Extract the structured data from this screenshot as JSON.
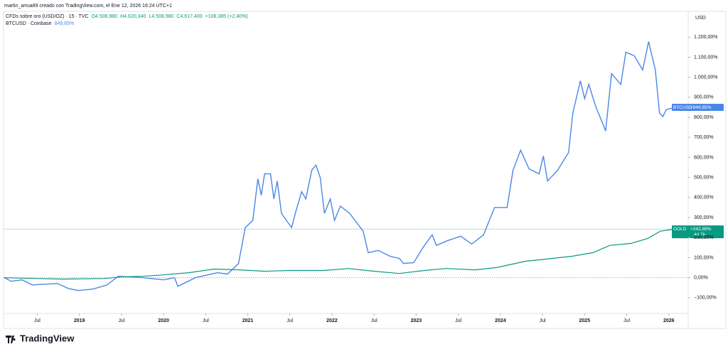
{
  "header": {
    "credit": "martin_arrua89 creado con TradingView.com, el Ene 12, 2026 16:24 UTC+1",
    "logo": "TradingView"
  },
  "chart_data": {
    "type": "line",
    "currency": "USD",
    "legend": [
      {
        "name": "CFDs sobre oro (USD/OZ) · 15 · TVC",
        "fields": [
          "O4.508,980",
          "H4.620,340",
          "L4.508,980",
          "C4.617,400",
          "+108,385 (+2,40%)"
        ]
      },
      {
        "name": "BTCUSD · Coinbase",
        "fields": [
          "849,65%"
        ]
      }
    ],
    "xlim": [
      2018.1,
      2026.23
    ],
    "ylim": [
      -178.6,
      1328.6
    ],
    "xticks": [
      {
        "value": 2018.5,
        "label": "Jul"
      },
      {
        "value": 2019,
        "label": "2019"
      },
      {
        "value": 2019.5,
        "label": "Jul"
      },
      {
        "value": 2020,
        "label": "2020"
      },
      {
        "value": 2020.5,
        "label": "Jul"
      },
      {
        "value": 2021,
        "label": "2021"
      },
      {
        "value": 2021.5,
        "label": "Jul"
      },
      {
        "value": 2022,
        "label": "2022"
      },
      {
        "value": 2022.5,
        "label": "Jul"
      },
      {
        "value": 2023,
        "label": "2023"
      },
      {
        "value": 2023.5,
        "label": "Jul"
      },
      {
        "value": 2024,
        "label": "2024"
      },
      {
        "value": 2024.5,
        "label": "Jul"
      },
      {
        "value": 2025,
        "label": "2025"
      },
      {
        "value": 2025.5,
        "label": "Jul"
      },
      {
        "value": 2026,
        "label": "2026"
      }
    ],
    "yticks": [
      {
        "value": -100,
        "label": "−100,00%"
      },
      {
        "value": 0,
        "label": "0,00%"
      },
      {
        "value": 100,
        "label": "100,00%"
      },
      {
        "value": 200,
        "label": "200,00%"
      },
      {
        "value": 300,
        "label": "300,00%"
      },
      {
        "value": 400,
        "label": "400,00%"
      },
      {
        "value": 500,
        "label": "500,00%"
      },
      {
        "value": 600,
        "label": "600,00%"
      },
      {
        "value": 700,
        "label": "700,00%"
      },
      {
        "value": 800,
        "label": "800,00%"
      },
      {
        "value": 900,
        "label": "900,00%"
      },
      {
        "value": 1000,
        "label": "1.000,00%"
      },
      {
        "value": 1100,
        "label": "1.100,00%"
      },
      {
        "value": 1200,
        "label": "1.200,00%"
      }
    ],
    "series": [
      {
        "name": "BTCUSD",
        "color": "#4a86e8",
        "last_label": "+849,65%",
        "x": [
          2018.11,
          2018.19,
          2018.32,
          2018.44,
          2018.74,
          2018.87,
          2018.99,
          2019.16,
          2019.33,
          2019.46,
          2019.75,
          2020.0,
          2020.13,
          2020.17,
          2020.38,
          2020.64,
          2020.76,
          2020.89,
          2020.97,
          2021.06,
          2021.12,
          2021.16,
          2021.2,
          2021.27,
          2021.31,
          2021.35,
          2021.4,
          2021.52,
          2021.57,
          2021.64,
          2021.69,
          2021.76,
          2021.81,
          2021.86,
          2021.91,
          2021.98,
          2022.03,
          2022.1,
          2022.21,
          2022.37,
          2022.43,
          2022.55,
          2022.69,
          2022.8,
          2022.85,
          2022.97,
          2023.08,
          2023.19,
          2023.24,
          2023.38,
          2023.53,
          2023.66,
          2023.8,
          2023.93,
          2024.08,
          2024.15,
          2024.24,
          2024.34,
          2024.46,
          2024.51,
          2024.56,
          2024.68,
          2024.81,
          2024.86,
          2024.95,
          2025.0,
          2025.05,
          2025.13,
          2025.25,
          2025.32,
          2025.43,
          2025.49,
          2025.59,
          2025.69,
          2025.76,
          2025.84,
          2025.89,
          2025.93,
          2025.97,
          2026.08
        ],
        "values": [
          0,
          -18,
          -11,
          -36,
          -29,
          -54,
          -64,
          -57,
          -36,
          7,
          0,
          -11,
          0,
          -43,
          0,
          25,
          18,
          71,
          250,
          286,
          493,
          411,
          518,
          518,
          393,
          482,
          321,
          250,
          329,
          429,
          393,
          536,
          561,
          500,
          321,
          393,
          286,
          357,
          321,
          232,
          125,
          136,
          107,
          96,
          71,
          75,
          150,
          214,
          161,
          186,
          207,
          168,
          214,
          350,
          350,
          536,
          636,
          543,
          518,
          607,
          482,
          536,
          625,
          821,
          982,
          893,
          964,
          857,
          732,
          1018,
          964,
          1125,
          1107,
          1036,
          1178,
          1036,
          821,
          804,
          839,
          849.65
        ]
      },
      {
        "name": "GOLD",
        "color": "#089981",
        "last_label": "+242,89%",
        "countdown": "4d 7h",
        "x": [
          2018.11,
          2018.5,
          2018.8,
          2019.3,
          2019.5,
          2019.75,
          2020.0,
          2020.3,
          2020.6,
          2020.9,
          2021.2,
          2021.5,
          2021.9,
          2022.2,
          2022.5,
          2022.8,
          2023.1,
          2023.35,
          2023.7,
          2023.95,
          2024.3,
          2024.55,
          2024.85,
          2025.1,
          2025.3,
          2025.55,
          2025.75,
          2025.9,
          2026.08
        ],
        "values": [
          0,
          -4,
          -7,
          -4,
          4,
          7,
          14,
          25,
          43,
          39,
          32,
          36,
          36,
          46,
          32,
          21,
          36,
          46,
          39,
          50,
          82,
          93,
          107,
          125,
          161,
          171,
          196,
          232,
          242.89
        ]
      }
    ]
  }
}
